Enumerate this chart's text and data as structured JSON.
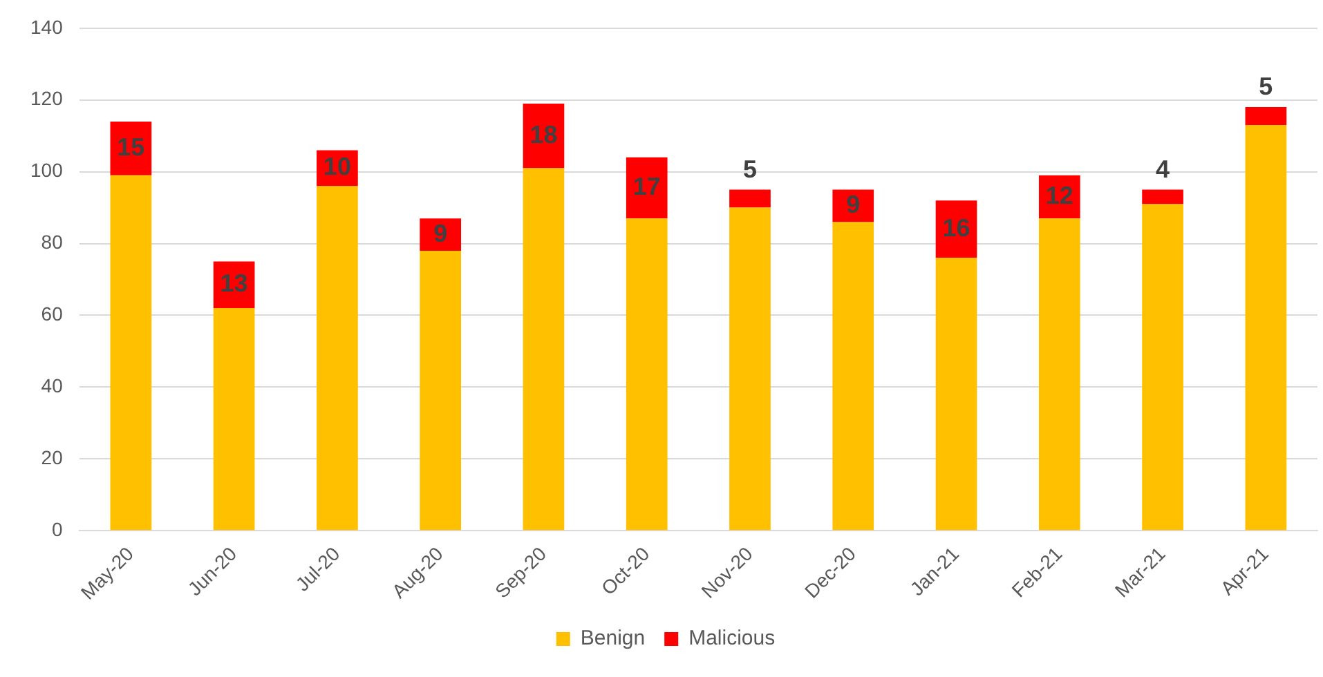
{
  "chart_data": {
    "type": "bar",
    "stacked": true,
    "categories": [
      "May-20",
      "Jun-20",
      "Jul-20",
      "Aug-20",
      "Sep-20",
      "Oct-20",
      "Nov-20",
      "Dec-20",
      "Jan-21",
      "Feb-21",
      "Mar-21",
      "Apr-21"
    ],
    "series": [
      {
        "name": "Benign",
        "color": "#ffc000",
        "values": [
          99,
          62,
          96,
          78,
          101,
          87,
          90,
          86,
          76,
          87,
          91,
          113
        ]
      },
      {
        "name": "Malicious",
        "color": "#ff0000",
        "values": [
          15,
          13,
          10,
          9,
          18,
          17,
          5,
          9,
          16,
          12,
          4,
          5
        ],
        "value_labels": [
          "15",
          "13",
          "10",
          "9",
          "18",
          "17",
          "5",
          "9",
          "16",
          "12",
          "4",
          "5"
        ]
      }
    ],
    "ylim": [
      0,
      140
    ],
    "yticks": [
      0,
      20,
      40,
      60,
      80,
      100,
      120,
      140
    ],
    "grid": "y",
    "legend": "bottom"
  }
}
